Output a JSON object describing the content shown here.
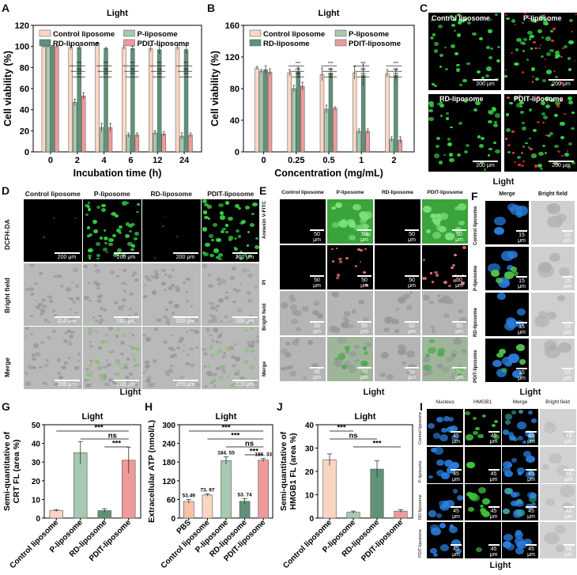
{
  "panel_letters": {
    "A": "A",
    "B": "B",
    "C": "C",
    "D": "D",
    "E": "E",
    "F": "F",
    "G": "G",
    "H": "H",
    "J": "J",
    "I": "I"
  },
  "light": "Light",
  "colors": {
    "control": "#f9d6c4",
    "p": "#a6c9b0",
    "rd": "#5f9278",
    "pdit": "#ee9a9a",
    "green": "#38d84a",
    "red": "#ff3a3a",
    "blue": "#2a7fe0"
  },
  "groups4": [
    "Control liposome",
    "P-liposome",
    "RD-liposome",
    "PDIT-liposome"
  ],
  "chart_data": [
    {
      "id": "A",
      "type": "bar",
      "title": "Light",
      "xlabel": "Incubation time (h)",
      "ylabel": "Cell viability (%)",
      "categories": [
        "0",
        "2",
        "4",
        "6",
        "12",
        "24"
      ],
      "ylim": [
        0,
        120
      ],
      "yticks": [
        0,
        20,
        40,
        60,
        80,
        100,
        120
      ],
      "legend": [
        "Control liposome",
        "P-liposome",
        "RD-liposome",
        "PDIT-liposome"
      ],
      "series": [
        {
          "name": "Control liposome",
          "values": [
            100,
            99,
            103,
            99,
            98,
            99
          ],
          "err": [
            1,
            2,
            1,
            2,
            3,
            2
          ]
        },
        {
          "name": "P-liposome",
          "values": [
            100,
            47,
            23,
            16,
            18,
            15
          ],
          "err": [
            1,
            3,
            4,
            2,
            2,
            3
          ]
        },
        {
          "name": "RD-liposome",
          "values": [
            100,
            99,
            98,
            98,
            97,
            97
          ],
          "err": [
            1,
            2,
            1,
            2,
            4,
            4
          ]
        },
        {
          "name": "PDIT-liposome",
          "values": [
            100,
            53,
            23,
            16,
            17,
            16
          ],
          "err": [
            1,
            3,
            4,
            2,
            2,
            2
          ]
        }
      ],
      "sig": [
        "***",
        "ns",
        "***"
      ]
    },
    {
      "id": "B",
      "type": "bar",
      "title": "Light",
      "xlabel": "Concentration (mg/mL)",
      "ylabel": "Cell viability (%)",
      "categories": [
        "0",
        "0.25",
        "0.5",
        "1",
        "2"
      ],
      "ylim": [
        0,
        160
      ],
      "yticks": [
        0,
        40,
        80,
        120,
        160
      ],
      "legend": [
        "Control liposome",
        "P-liposome",
        "RD-liposome",
        "PDIT-liposome"
      ],
      "series": [
        {
          "name": "Control liposome",
          "values": [
            106,
            100,
            98,
            100,
            99
          ],
          "err": [
            2,
            4,
            8,
            8,
            5
          ]
        },
        {
          "name": "P-liposome",
          "values": [
            102,
            80,
            54,
            26,
            16
          ],
          "err": [
            2,
            4,
            5,
            3,
            3
          ]
        },
        {
          "name": "RD-liposome",
          "values": [
            104,
            101,
            99,
            97,
            97
          ],
          "err": [
            5,
            6,
            6,
            14,
            7
          ]
        },
        {
          "name": "PDIT-liposome",
          "values": [
            101,
            83,
            55,
            26,
            15
          ],
          "err": [
            4,
            5,
            2,
            3,
            4
          ]
        }
      ],
      "sig": [
        "***",
        "ns",
        "***"
      ]
    },
    {
      "id": "G",
      "type": "bar",
      "title": "Light",
      "ylabel": "Semi-quantitative of CRT FL (area %)",
      "categories": [
        "Control liposome",
        "P-liposome",
        "RD-liposome",
        "PDIT-liposome"
      ],
      "values": [
        4,
        35,
        4,
        31
      ],
      "err": [
        0.5,
        6,
        1,
        7
      ],
      "ylim": [
        0,
        50
      ],
      "yticks": [
        0,
        10,
        20,
        30,
        40,
        50
      ],
      "sig": [
        "***",
        "ns",
        "***"
      ]
    },
    {
      "id": "H",
      "type": "bar",
      "title": "Light",
      "ylabel": "Extracellular ATP (nmol/L)",
      "categories": [
        "PBS",
        "Control liposome",
        "P-liposome",
        "RD-liposome",
        "PDIT-liposome"
      ],
      "values": [
        53.49,
        73.97,
        184.55,
        53.74,
        186.33
      ],
      "labels": [
        "53.49",
        "73. 97",
        "184. 55",
        "53. 74",
        "186. 33"
      ],
      "err": [
        6,
        4,
        12,
        9,
        5
      ],
      "ylim": [
        0,
        300
      ],
      "yticks": [
        0,
        60,
        120,
        180,
        240,
        300
      ],
      "sig": [
        "***",
        "***",
        "ns",
        "***"
      ]
    },
    {
      "id": "J",
      "type": "bar",
      "title": "Light",
      "ylabel": "Semi-quantitative of HMGB1 FL (area %)",
      "categories": [
        "Control liposome",
        "P-liposome",
        "RD-liposome",
        "PDIT-liposome"
      ],
      "values": [
        25,
        2.5,
        21,
        3
      ],
      "err": [
        2.5,
        0.5,
        3.5,
        0.6
      ],
      "ylim": [
        0,
        40
      ],
      "yticks": [
        0,
        10,
        20,
        30,
        40
      ],
      "sig": [
        "***",
        "ns",
        "***"
      ]
    }
  ],
  "panelC": {
    "titles": [
      "Control liposome",
      "P-liposome",
      "RD-liposome",
      "PDIT-liposome"
    ],
    "scale": "200 μm",
    "light": "Light"
  },
  "panelD": {
    "cols": [
      "Control liposome",
      "P-liposome",
      "RD-liposome",
      "PDIT-liposome"
    ],
    "rows": [
      "DCFH-DA",
      "Bright field",
      "Merge"
    ],
    "scale": "200 μm",
    "light": "Light"
  },
  "panelE": {
    "cols": [
      "Control liposome",
      "P-liposome",
      "RD-liposome",
      "PDIT-liposome"
    ],
    "rows": [
      "Annexin V-FITC",
      "PI",
      "Bright field",
      "Merge"
    ],
    "scale": "50 μm",
    "light": "Light"
  },
  "panelF": {
    "cols": [
      "Merge",
      "Bright field"
    ],
    "rows": [
      "Control liposome",
      "P-liposome",
      "RD-liposome",
      "PDIT-liposome"
    ],
    "scale": "15 μm",
    "light": "Light"
  },
  "panelI": {
    "cols": [
      "Nucleus",
      "HMGB1",
      "Merge",
      "Bright field"
    ],
    "rows": [
      "Control liposome",
      "P-liposome",
      "RD-liposome",
      "PDIT-liposome"
    ],
    "scale": "45 μm",
    "light": "Light"
  }
}
